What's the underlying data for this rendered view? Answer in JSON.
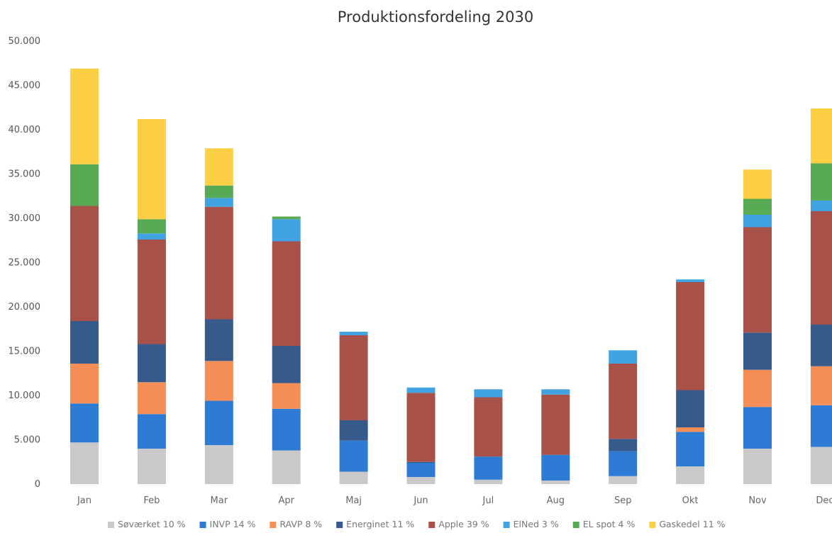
{
  "chart_data": {
    "type": "bar",
    "stacked": true,
    "title": "Produktionsfordeling 2030",
    "xlabel": "",
    "ylabel": "",
    "ylim": [
      0,
      50000
    ],
    "y_ticks": [
      0,
      5000,
      10000,
      15000,
      20000,
      25000,
      30000,
      35000,
      40000,
      45000,
      50000
    ],
    "y_tick_labels": [
      "0",
      "5.000",
      "10.000",
      "15.000",
      "20.000",
      "25.000",
      "30.000",
      "35.000",
      "40.000",
      "45.000",
      "50.000"
    ],
    "grid": false,
    "legend_position": "bottom",
    "categories": [
      "Jan",
      "Feb",
      "Mar",
      "Apr",
      "Maj",
      "Jun",
      "Jul",
      "Aug",
      "Sep",
      "Okt",
      "Nov",
      "Dec"
    ],
    "series": [
      {
        "name": "Søværket 10 %",
        "color": "#c9c9c9",
        "values": [
          4700,
          4000,
          4400,
          3800,
          1400,
          800,
          500,
          400,
          900,
          2000,
          4000,
          4200
        ]
      },
      {
        "name": "INVP 14 %",
        "color": "#2e7bd6",
        "values": [
          4400,
          3900,
          5000,
          4700,
          3500,
          1600,
          2600,
          2900,
          2800,
          3900,
          4700,
          4700
        ]
      },
      {
        "name": "RAVP 8 %",
        "color": "#f58f57",
        "values": [
          4500,
          3600,
          4500,
          2900,
          0,
          0,
          0,
          0,
          0,
          500,
          4200,
          4400
        ]
      },
      {
        "name": "Energinet 11 %",
        "color": "#375a8c",
        "values": [
          4800,
          4300,
          4700,
          4200,
          2300,
          100,
          0,
          0,
          1400,
          4200,
          4200,
          4700
        ]
      },
      {
        "name": "Apple 39 %",
        "color": "#a85148",
        "values": [
          13000,
          11800,
          12700,
          11800,
          9600,
          7800,
          6700,
          6800,
          8500,
          12200,
          11900,
          12800
        ]
      },
      {
        "name": "ElNed 3 %",
        "color": "#42a3e3",
        "values": [
          0,
          700,
          1000,
          2500,
          400,
          600,
          900,
          600,
          1500,
          300,
          1400,
          1200
        ]
      },
      {
        "name": "EL spot 4 %",
        "color": "#59aa55",
        "values": [
          4700,
          1600,
          1400,
          300,
          0,
          0,
          0,
          0,
          0,
          0,
          1800,
          4200
        ]
      },
      {
        "name": "Gaskedel 11 %",
        "color": "#fdcf45",
        "values": [
          10800,
          11300,
          4200,
          0,
          0,
          0,
          0,
          0,
          0,
          0,
          3300,
          6200
        ]
      }
    ]
  }
}
